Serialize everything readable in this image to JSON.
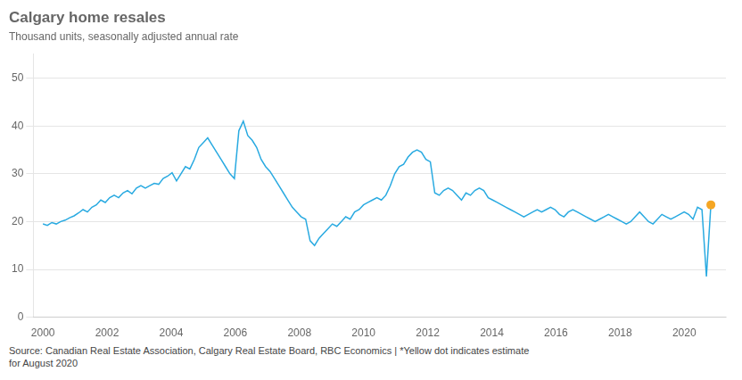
{
  "chart_data": {
    "type": "line",
    "title": "Calgary home resales",
    "subtitle": "Thousand units, seasonally adjusted annual rate",
    "annotations": [
      "Source: Canadian Real Estate Association, Calgary Real Estate Board, RBC Economics | *Yellow dot indicates estimate\nfor August 2020"
    ],
    "x": [
      2000,
      2000.1389,
      2000.2777,
      2000.4166,
      2000.5555,
      2000.6943,
      2000.8332,
      2000.9721,
      2001.1109,
      2001.2498,
      2001.3887,
      2001.5275,
      2001.6664,
      2001.8053,
      2001.9441,
      2002.083,
      2002.2219,
      2002.3607,
      2002.4996,
      2002.6385,
      2002.7773,
      2002.9162,
      2003.0551,
      2003.1939,
      2003.3328,
      2003.4717,
      2003.6105,
      2003.7494,
      2003.8883,
      2004.0271,
      2004.166,
      2004.3049,
      2004.4437,
      2004.5826,
      2004.7215,
      2004.8603,
      2004.9992,
      2005.1381,
      2005.2769,
      2005.4158,
      2005.5547,
      2005.6935,
      2005.8324,
      2005.9713,
      2006.1101,
      2006.249,
      2006.3879,
      2006.5267,
      2006.6656,
      2006.8045,
      2006.9433,
      2007.0822,
      2007.2211,
      2007.3599,
      2007.4988,
      2007.6377,
      2007.7765,
      2007.9154,
      2008.0543,
      2008.1931,
      2008.332,
      2008.4709,
      2008.6097,
      2008.7486,
      2008.8875,
      2009.0263,
      2009.1652,
      2009.3041,
      2009.4429,
      2009.5818,
      2009.7207,
      2009.8595,
      2009.9984,
      2010.1373,
      2010.2761,
      2010.415,
      2010.5539,
      2010.6927,
      2010.8316,
      2010.9705,
      2011.1093,
      2011.2482,
      2011.3871,
      2011.5259,
      2011.6648,
      2011.8037,
      2011.9425,
      2012.0814,
      2012.2203,
      2012.3591,
      2012.498,
      2012.6369,
      2012.7757,
      2012.9146,
      2013.0535,
      2013.1923,
      2013.3312,
      2013.4701,
      2013.6089,
      2013.7478,
      2013.8867,
      2014.0255,
      2014.1644,
      2014.3033,
      2014.4421,
      2014.581,
      2014.7199,
      2014.8587,
      2014.9976,
      2015.1365,
      2015.2753,
      2015.4142,
      2015.5531,
      2015.6919,
      2015.8308,
      2015.9697,
      2016.1085,
      2016.2474,
      2016.3863,
      2016.5251,
      2016.664,
      2016.8029,
      2016.9417,
      2017.0806,
      2017.2195,
      2017.3583,
      2017.4972,
      2017.6361,
      2017.7749,
      2017.9138,
      2018.0527,
      2018.1915,
      2018.3304,
      2018.4693,
      2018.6081,
      2018.747,
      2018.8859,
      2019.0247,
      2019.1636,
      2019.3025,
      2019.4413,
      2019.5802,
      2019.7191,
      2019.8579,
      2019.9968,
      2020.1357,
      2020.2745,
      2020.4134,
      2020.5523,
      2020.6911,
      2020.83
    ],
    "series": [
      {
        "color": "#29aae1",
        "values": [
          19.5,
          19.2,
          19.8,
          19.5,
          20.0,
          20.3,
          20.8,
          21.2,
          21.8,
          22.5,
          22.0,
          23.0,
          23.5,
          24.5,
          24.0,
          25.0,
          25.5,
          25.0,
          26.0,
          26.5,
          25.8,
          27.0,
          27.5,
          27.0,
          27.5,
          28.0,
          27.8,
          29.0,
          29.5,
          30.2,
          28.5,
          30.0,
          31.5,
          31.0,
          33.0,
          35.5,
          36.5,
          37.5,
          36.0,
          34.5,
          33.0,
          31.5,
          30.0,
          29.0,
          39.0,
          41.0,
          38.0,
          37.0,
          35.5,
          33.0,
          31.5,
          30.5,
          29.0,
          27.5,
          26.0,
          24.5,
          23.0,
          22.0,
          21.0,
          20.5,
          16.0,
          15.0,
          16.5,
          17.5,
          18.5,
          19.5,
          19.0,
          20.0,
          21.0,
          20.5,
          22.0,
          22.5,
          23.5,
          24.0,
          24.5,
          25.0,
          24.5,
          25.5,
          27.5,
          30.0,
          31.5,
          32.0,
          33.5,
          34.5,
          35.0,
          34.5,
          33.0,
          32.5,
          26.0,
          25.5,
          26.5,
          27.0,
          26.5,
          25.5,
          24.5,
          26.0,
          25.5,
          26.5,
          27.0,
          26.5,
          25.0,
          24.5,
          24.0,
          23.5,
          23.0,
          22.5,
          22.0,
          21.5,
          21.0,
          21.5,
          22.0,
          22.5,
          22.0,
          22.5,
          23.0,
          22.5,
          21.5,
          21.0,
          22.0,
          22.5,
          22.0,
          21.5,
          21.0,
          20.5,
          20.0,
          20.5,
          21.0,
          21.5,
          21.0,
          20.5,
          20.0,
          19.5,
          20.0,
          21.0,
          22.0,
          21.0,
          20.0,
          19.5,
          20.5,
          21.5,
          21.0,
          20.5,
          21.0,
          21.5,
          22.0,
          21.5,
          20.5,
          23.0,
          22.5,
          8.5,
          23.5
        ]
      },
      {
        "type": "scatter",
        "marker": "circle",
        "color": "#f5a623",
        "values": [
          null,
          null,
          null,
          null,
          null,
          null,
          null,
          null,
          null,
          null,
          null,
          null,
          null,
          null,
          null,
          null,
          null,
          null,
          null,
          null,
          null,
          null,
          null,
          null,
          null,
          null,
          null,
          null,
          null,
          null,
          null,
          null,
          null,
          null,
          null,
          null,
          null,
          null,
          null,
          null,
          null,
          null,
          null,
          null,
          null,
          null,
          null,
          null,
          null,
          null,
          null,
          null,
          null,
          null,
          null,
          null,
          null,
          null,
          null,
          null,
          null,
          null,
          null,
          null,
          null,
          null,
          null,
          null,
          null,
          null,
          null,
          null,
          null,
          null,
          null,
          null,
          null,
          null,
          null,
          null,
          null,
          null,
          null,
          null,
          null,
          null,
          null,
          null,
          null,
          null,
          null,
          null,
          null,
          null,
          null,
          null,
          null,
          null,
          null,
          null,
          null,
          null,
          null,
          null,
          null,
          null,
          null,
          null,
          null,
          null,
          null,
          null,
          null,
          null,
          null,
          null,
          null,
          null,
          null,
          null,
          null,
          null,
          null,
          null,
          null,
          null,
          null,
          null,
          null,
          null,
          null,
          null,
          null,
          null,
          null,
          null,
          null,
          null,
          null,
          null,
          null,
          null,
          null,
          null,
          null,
          null,
          null,
          null,
          null,
          null,
          23.5
        ]
      }
    ],
    "xlim": [
      1999.7,
      2021.3
    ],
    "xticks": [
      2000,
      2002,
      2004,
      2006,
      2008,
      2010,
      2012,
      2014,
      2016,
      2018,
      2020
    ],
    "ylim": [
      0,
      55
    ],
    "yticks": [
      0,
      10,
      20,
      30,
      40,
      50
    ],
    "grid": "y"
  }
}
